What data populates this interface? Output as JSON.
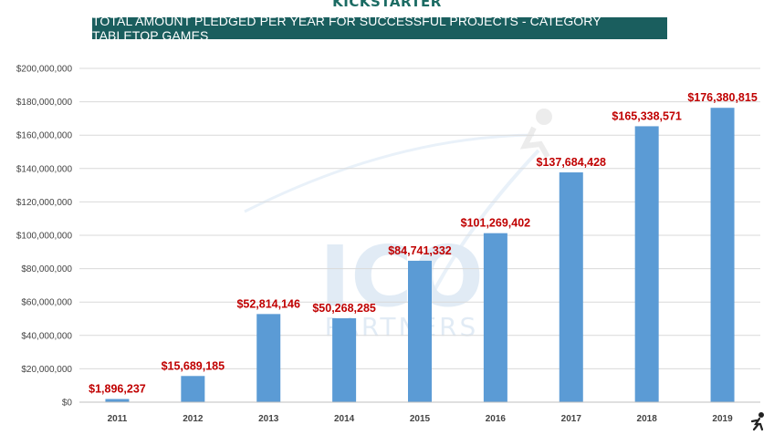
{
  "brand": "KICKSTARTER",
  "chart_data": {
    "type": "bar",
    "title": "TOTAL AMOUNT PLEDGED PER YEAR FOR SUCCESSFUL PROJECTS - CATEGORY TABLETOP GAMES",
    "categories": [
      "2011",
      "2012",
      "2013",
      "2014",
      "2015",
      "2016",
      "2017",
      "2018",
      "2019"
    ],
    "values": [
      1896237,
      15689185,
      52814146,
      50268285,
      84741332,
      101269402,
      137684428,
      165338571,
      176380815
    ],
    "data_labels": [
      "$1,896,237",
      "$15,689,185",
      "$52,814,146",
      "$50,268,285",
      "$84,741,332",
      "$101,269,402",
      "$137,684,428",
      "$165,338,571",
      "$176,380,815"
    ],
    "yticks": [
      "$0",
      "$20,000,000",
      "$40,000,000",
      "$60,000,000",
      "$80,000,000",
      "$100,000,000",
      "$120,000,000",
      "$140,000,000",
      "$160,000,000",
      "$180,000,000",
      "$200,000,000"
    ],
    "ylim": [
      0,
      200000000
    ],
    "xlabel": "",
    "ylabel": "",
    "grid": true,
    "bar_color": "#5b9bd5",
    "label_color": "#c00000"
  },
  "watermark": {
    "logo_text": "ICO",
    "sub_text": "PARTNERS"
  },
  "colors": {
    "title_bg": "#1a5e5e",
    "brand": "#1b6b63"
  }
}
